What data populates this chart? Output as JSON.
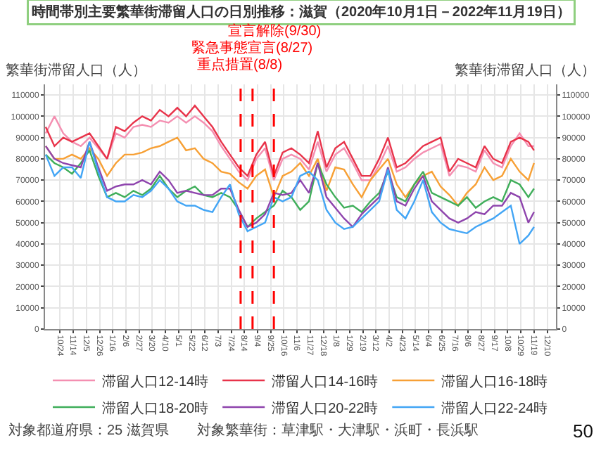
{
  "chart_data": {
    "type": "line",
    "title": "時間帯別主要繁華街滞留人口の日別推移：滋賀（2020年10月1日－2022年11月19日）",
    "ylabel": "繁華街滞留人口（人）",
    "y2label": "繁華街滞留人口（人）",
    "x": [
      "2020-10-01",
      "2020-10-15",
      "2020-10-29",
      "2020-11-12",
      "2020-11-26",
      "2020-12-10",
      "2020-12-24",
      "2021-01-07",
      "2021-01-21",
      "2021-02-04",
      "2021-02-18",
      "2021-03-04",
      "2021-03-18",
      "2021-04-01",
      "2021-04-15",
      "2021-04-29",
      "2021-05-13",
      "2021-05-27",
      "2021-06-10",
      "2021-06-24",
      "2021-07-08",
      "2021-07-22",
      "2021-08-05",
      "2021-08-19",
      "2021-09-02",
      "2021-09-16",
      "2021-09-30",
      "2021-10-14",
      "2021-10-28",
      "2021-11-11",
      "2021-11-25",
      "2021-12-09",
      "2021-12-23",
      "2022-01-06",
      "2022-01-20",
      "2022-02-03",
      "2022-02-17",
      "2022-03-03",
      "2022-03-17",
      "2022-03-31",
      "2022-04-14",
      "2022-04-28",
      "2022-05-12",
      "2022-05-26",
      "2022-06-09",
      "2022-06-23",
      "2022-07-07",
      "2022-07-21",
      "2022-08-04",
      "2022-08-18",
      "2022-09-01",
      "2022-09-15",
      "2022-09-29",
      "2022-10-13",
      "2022-10-27",
      "2022-11-10",
      "2022-11-19"
    ],
    "series": [
      {
        "name": "滞留人口12-14時",
        "color": "#f48fb1",
        "values": [
          92000,
          100000,
          92000,
          88000,
          86000,
          90000,
          85000,
          80000,
          92000,
          90000,
          95000,
          96000,
          95000,
          98000,
          97000,
          100000,
          97000,
          100000,
          97000,
          93000,
          86000,
          80000,
          74000,
          70000,
          80000,
          85000,
          70000,
          80000,
          82000,
          80000,
          75000,
          88000,
          74000,
          82000,
          85000,
          78000,
          70000,
          70000,
          77000,
          86000,
          74000,
          76000,
          80000,
          83000,
          85000,
          87000,
          72000,
          77000,
          76000,
          74000,
          84000,
          78000,
          76000,
          86000,
          92000,
          86000,
          86000
        ]
      },
      {
        "name": "滞留人口14-16時",
        "color": "#e8334a",
        "values": [
          95000,
          86000,
          90000,
          88000,
          90000,
          92000,
          86000,
          80000,
          95000,
          93000,
          97000,
          100000,
          98000,
          103000,
          100000,
          104000,
          100000,
          105000,
          100000,
          95000,
          88000,
          82000,
          76000,
          72000,
          82000,
          88000,
          72000,
          83000,
          85000,
          82000,
          78000,
          93000,
          76000,
          85000,
          88000,
          80000,
          72000,
          72000,
          80000,
          90000,
          76000,
          78000,
          82000,
          86000,
          88000,
          90000,
          74000,
          80000,
          78000,
          76000,
          86000,
          80000,
          78000,
          88000,
          90000,
          88000,
          84000
        ]
      },
      {
        "name": "滞留人口16-18時",
        "color": "#f7a035",
        "values": [
          86000,
          80000,
          80000,
          82000,
          80000,
          85000,
          80000,
          72000,
          78000,
          82000,
          82000,
          83000,
          85000,
          86000,
          88000,
          90000,
          84000,
          85000,
          80000,
          78000,
          74000,
          73000,
          69000,
          66000,
          72000,
          75000,
          62000,
          72000,
          74000,
          78000,
          72000,
          80000,
          65000,
          76000,
          75000,
          68000,
          62000,
          70000,
          75000,
          80000,
          68000,
          62000,
          68000,
          72000,
          74000,
          67000,
          63000,
          58000,
          64000,
          68000,
          76000,
          70000,
          72000,
          80000,
          74000,
          70000,
          78000
        ]
      },
      {
        "name": "滞留人口18-20時",
        "color": "#3fae5a",
        "values": [
          82000,
          78000,
          76000,
          73000,
          78000,
          84000,
          72000,
          62000,
          64000,
          62000,
          65000,
          63000,
          66000,
          72000,
          66000,
          62000,
          65000,
          67000,
          63000,
          62000,
          64000,
          62000,
          56000,
          48000,
          52000,
          55000,
          58000,
          65000,
          62000,
          56000,
          60000,
          78000,
          68000,
          62000,
          57000,
          58000,
          55000,
          60000,
          64000,
          74000,
          62000,
          60000,
          68000,
          74000,
          64000,
          62000,
          60000,
          58000,
          62000,
          57000,
          60000,
          62000,
          60000,
          70000,
          68000,
          62000,
          66000
        ]
      },
      {
        "name": "滞留人口20-22時",
        "color": "#8e44ad",
        "values": [
          86000,
          80000,
          78000,
          77000,
          76000,
          88000,
          76000,
          65000,
          67000,
          68000,
          68000,
          70000,
          68000,
          74000,
          70000,
          64000,
          65000,
          64000,
          63000,
          63000,
          66000,
          66000,
          56000,
          48000,
          50000,
          54000,
          64000,
          63000,
          64000,
          70000,
          64000,
          78000,
          62000,
          57000,
          52000,
          48000,
          54000,
          58000,
          62000,
          76000,
          60000,
          58000,
          66000,
          72000,
          60000,
          56000,
          52000,
          50000,
          52000,
          55000,
          54000,
          58000,
          58000,
          64000,
          62000,
          50000,
          55000
        ]
      },
      {
        "name": "滞留人口22-24時",
        "color": "#42a5f5",
        "values": [
          82000,
          72000,
          76000,
          76000,
          71000,
          88000,
          74000,
          62000,
          60000,
          60000,
          63000,
          62000,
          65000,
          70000,
          66000,
          60000,
          58000,
          58000,
          56000,
          55000,
          62000,
          68000,
          54000,
          46000,
          48000,
          50000,
          62000,
          60000,
          62000,
          72000,
          74000,
          70000,
          56000,
          50000,
          47000,
          48000,
          52000,
          56000,
          60000,
          75000,
          56000,
          52000,
          60000,
          70000,
          55000,
          50000,
          47000,
          46000,
          45000,
          48000,
          50000,
          52000,
          55000,
          58000,
          40000,
          44000,
          48000
        ]
      }
    ],
    "xlim": [
      "2020-09-30",
      "2022-12-24"
    ],
    "xticks": [
      {
        "value": "2020-10-24",
        "label": "10/24"
      },
      {
        "value": "2020-11-14",
        "label": "11/14"
      },
      {
        "value": "2020-12-05",
        "label": "12/5"
      },
      {
        "value": "2020-12-26",
        "label": "12/26"
      },
      {
        "value": "2021-01-16",
        "label": "1/16"
      },
      {
        "value": "2021-02-06",
        "label": "2/6"
      },
      {
        "value": "2021-02-27",
        "label": "2/27"
      },
      {
        "value": "2021-03-20",
        "label": "3/20"
      },
      {
        "value": "2021-04-10",
        "label": "4/10"
      },
      {
        "value": "2021-05-01",
        "label": "5/1"
      },
      {
        "value": "2021-05-22",
        "label": "5/22"
      },
      {
        "value": "2021-06-12",
        "label": "6/12"
      },
      {
        "value": "2021-07-03",
        "label": "7/3"
      },
      {
        "value": "2021-07-24",
        "label": "7/24"
      },
      {
        "value": "2021-08-14",
        "label": "8/14"
      },
      {
        "value": "2021-09-04",
        "label": "9/4"
      },
      {
        "value": "2021-09-25",
        "label": "9/25"
      },
      {
        "value": "2021-10-16",
        "label": "10/16"
      },
      {
        "value": "2021-11-06",
        "label": "11/6"
      },
      {
        "value": "2021-11-27",
        "label": "11/27"
      },
      {
        "value": "2021-12-18",
        "label": "12/18"
      },
      {
        "value": "2022-01-08",
        "label": "1/8"
      },
      {
        "value": "2022-01-29",
        "label": "1/29"
      },
      {
        "value": "2022-02-19",
        "label": "2/19"
      },
      {
        "value": "2022-03-12",
        "label": "3/12"
      },
      {
        "value": "2022-04-02",
        "label": "4/2"
      },
      {
        "value": "2022-04-23",
        "label": "4/23"
      },
      {
        "value": "2022-05-14",
        "label": "5/14"
      },
      {
        "value": "2022-06-04",
        "label": "6/4"
      },
      {
        "value": "2022-06-25",
        "label": "6/25"
      },
      {
        "value": "2022-07-16",
        "label": "7/16"
      },
      {
        "value": "2022-08-06",
        "label": "8/6"
      },
      {
        "value": "2022-08-27",
        "label": "8/27"
      },
      {
        "value": "2022-09-17",
        "label": "9/17"
      },
      {
        "value": "2022-10-08",
        "label": "10/8"
      },
      {
        "value": "2022-10-29",
        "label": "10/29"
      },
      {
        "value": "2022-11-19",
        "label": "11/19"
      },
      {
        "value": "2022-12-10",
        "label": "12/10"
      }
    ],
    "ylim": [
      0,
      115000
    ],
    "yticks": [
      0,
      10000,
      20000,
      30000,
      40000,
      50000,
      60000,
      70000,
      80000,
      90000,
      100000,
      110000
    ],
    "y2lim": [
      0,
      115000
    ],
    "y2ticks": [
      0,
      10000,
      20000,
      30000,
      40000,
      50000,
      60000,
      70000,
      80000,
      90000,
      100000,
      110000
    ],
    "ref_lines": [
      {
        "axis": "x",
        "value": "2021-08-08",
        "label": "重点措置(8/8)",
        "color": "#ff0000",
        "line_style": "dashed"
      },
      {
        "axis": "x",
        "value": "2021-08-27",
        "label": "緊急事態宣言(8/27)",
        "color": "#ff0000",
        "line_style": "dashed"
      },
      {
        "axis": "x",
        "value": "2021-09-30",
        "label": "宣言解除(9/30)",
        "color": "#ff0000",
        "line_style": "dashed"
      }
    ],
    "annotations": [
      "対象都道府県：25 滋賀県　　対象繁華街：草津駅・大津駅・浜町・長浜駅",
      "50"
    ],
    "grid": true,
    "legend": "bottom",
    "marker": "none",
    "line_style": "solid"
  }
}
